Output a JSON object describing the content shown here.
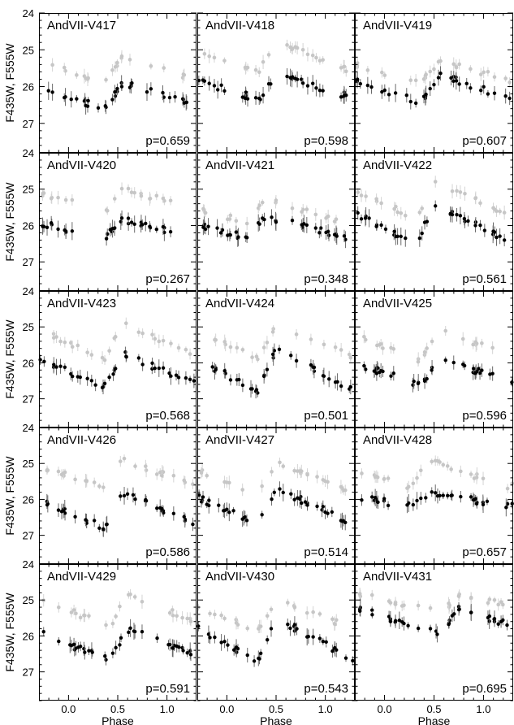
{
  "colors": {
    "primary_points": "#000000",
    "secondary_points": "#c6c6c6",
    "error_bars": "#6a6a6a"
  },
  "chart_data": {
    "type": "scatter",
    "layout": "5 rows x 3 columns small multiples, shared axes",
    "xlabel": "Phase",
    "ylabel": "F435W, F555W",
    "xlim": [
      -0.3,
      1.3
    ],
    "ylim": [
      27.8,
      24.0
    ],
    "y_inverted": true,
    "x_ticks": [
      "0.0",
      "0.5",
      "1.0"
    ],
    "y_ticks": [
      "24",
      "25",
      "26",
      "27"
    ],
    "grid": false,
    "series_description": "black points: F555W, gray points: F435W (no legend printed)",
    "panels": [
      {
        "name": "AndVII-V417",
        "period_label": "p=0.659",
        "f555_mean": 26.25,
        "f555_amp": 0.7,
        "f435_mean": 25.55,
        "f435_amp": 0.7,
        "max_phase": 0.55
      },
      {
        "name": "AndVII-V418",
        "period_label": "p=0.598",
        "f555_mean": 26.0,
        "f555_amp": 0.7,
        "f435_mean": 25.2,
        "f435_amp": 0.9,
        "max_phase": 0.5
      },
      {
        "name": "AndVII-V419",
        "period_label": "p=0.607",
        "f555_mean": 26.05,
        "f555_amp": 0.8,
        "f435_mean": 25.6,
        "f435_amp": 0.6,
        "max_phase": 0.55
      },
      {
        "name": "AndVII-V420",
        "period_label": "p=0.267",
        "f555_mean": 26.1,
        "f555_amp": 0.5,
        "f435_mean": 25.3,
        "f435_amp": 0.6,
        "max_phase": 0.55
      },
      {
        "name": "AndVII-V421",
        "period_label": "p=0.348",
        "f555_mean": 26.05,
        "f555_amp": 0.6,
        "f435_mean": 25.6,
        "f435_amp": 0.7,
        "max_phase": 0.4
      },
      {
        "name": "AndVII-V422",
        "period_label": "p=0.561",
        "f555_mean": 25.95,
        "f555_amp": 1.1,
        "f435_mean": 25.3,
        "f435_amp": 1.0,
        "max_phase": 0.5
      },
      {
        "name": "AndVII-V423",
        "period_label": "p=0.568",
        "f555_mean": 26.2,
        "f555_amp": 0.9,
        "f435_mean": 25.4,
        "f435_amp": 1.0,
        "max_phase": 0.55
      },
      {
        "name": "AndVII-V424",
        "period_label": "p=0.501",
        "f555_mean": 26.2,
        "f555_amp": 1.2,
        "f435_mean": 25.4,
        "f435_amp": 1.0,
        "max_phase": 0.5
      },
      {
        "name": "AndVII-V425",
        "period_label": "p=0.596",
        "f555_mean": 26.25,
        "f555_amp": 0.8,
        "f435_mean": 25.5,
        "f435_amp": 0.9,
        "max_phase": 0.55
      },
      {
        "name": "AndVII-V426",
        "period_label": "p=0.586",
        "f555_mean": 26.3,
        "f555_amp": 1.0,
        "f435_mean": 25.3,
        "f435_amp": 0.8,
        "max_phase": 0.55
      },
      {
        "name": "AndVII-V427",
        "period_label": "p=0.514",
        "f555_mean": 26.2,
        "f555_amp": 1.0,
        "f435_mean": 25.4,
        "f435_amp": 0.9,
        "max_phase": 0.5
      },
      {
        "name": "AndVII-V428",
        "period_label": "p=0.657",
        "f555_mean": 26.0,
        "f555_amp": 0.4,
        "f435_mean": 25.3,
        "f435_amp": 0.8,
        "max_phase": 0.45
      },
      {
        "name": "AndVII-V429",
        "period_label": "p=0.591",
        "f555_mean": 26.25,
        "f555_amp": 0.9,
        "f435_mean": 25.3,
        "f435_amp": 0.9,
        "max_phase": 0.6
      },
      {
        "name": "AndVII-V430",
        "period_label": "p=0.543",
        "f555_mean": 26.1,
        "f555_amp": 1.2,
        "f435_mean": 25.4,
        "f435_amp": 0.9,
        "max_phase": 0.5
      },
      {
        "name": "AndVII-V431",
        "period_label": "p=0.695",
        "f555_mean": 25.6,
        "f555_amp": 0.7,
        "f435_mean": 25.1,
        "f435_amp": 0.5,
        "max_phase": 0.75
      }
    ]
  }
}
